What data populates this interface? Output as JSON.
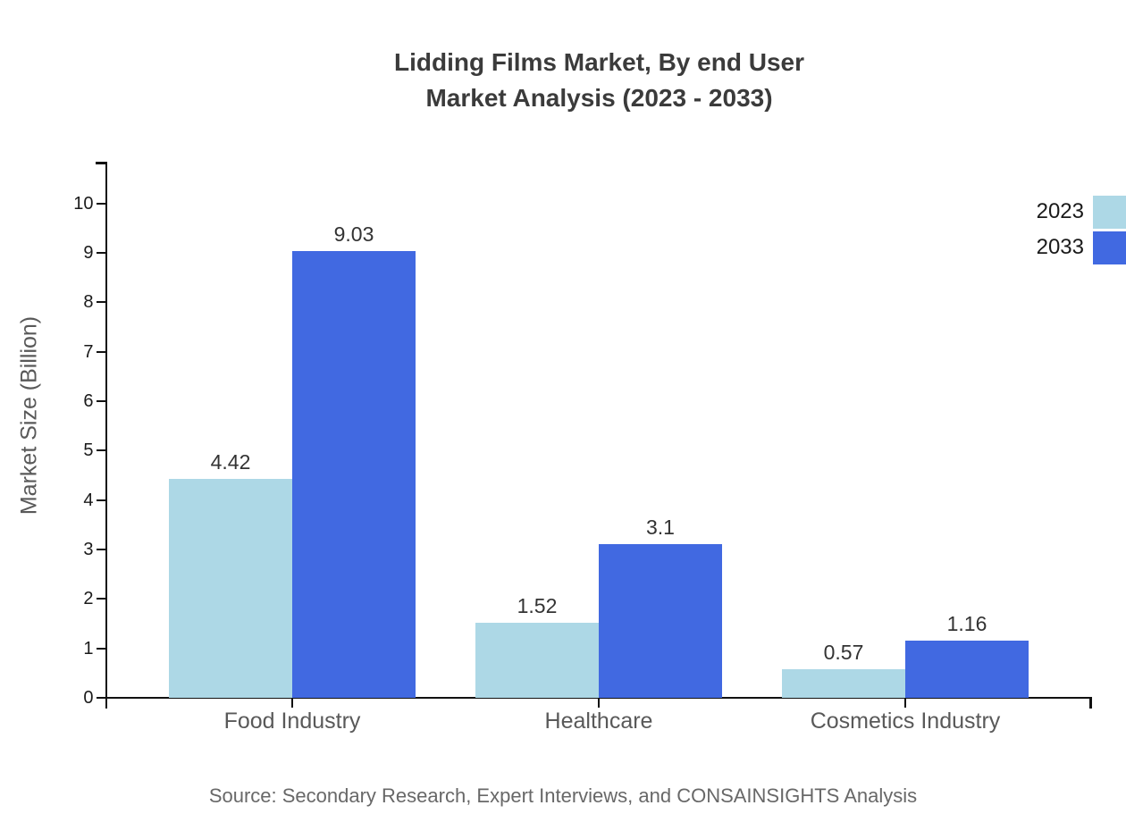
{
  "title": {
    "line1": "Lidding Films Market, By end User",
    "line2": "Market Analysis (2023 - 2033)"
  },
  "source_note": "Source: Secondary Research, Expert Interviews, and CONSAINSIGHTS Analysis",
  "colors": {
    "series_2023": "#ADD8E6",
    "series_2033": "#4169E1",
    "axis_line": "#111111",
    "title_text": "#3b3b3b",
    "category_text": "#595959",
    "value_text": "#333333",
    "source_text": "#686868"
  },
  "legend": {
    "position": "top-right",
    "items": [
      {
        "label": "2023",
        "color": "#ADD8E6"
      },
      {
        "label": "2033",
        "color": "#4169E1"
      }
    ]
  },
  "chart_data": {
    "type": "bar",
    "title": "Lidding Films Market, By end User Market Analysis (2023 - 2033)",
    "categories": [
      "Food Industry",
      "Healthcare",
      "Cosmetics Industry"
    ],
    "series": [
      {
        "name": "2023",
        "color": "#ADD8E6",
        "values": [
          4.42,
          1.52,
          0.57
        ]
      },
      {
        "name": "2033",
        "color": "#4169E1",
        "values": [
          9.03,
          3.1,
          1.16
        ]
      }
    ],
    "value_labels": [
      [
        "4.42",
        "1.52",
        "0.57"
      ],
      [
        "9.03",
        "3.1",
        "1.16"
      ]
    ],
    "xlabel": "",
    "ylabel": "Market Size (Billion)",
    "ylim": [
      0,
      10.8
    ],
    "yticks": [
      0,
      1,
      2,
      3,
      4,
      5,
      6,
      7,
      8,
      9,
      10
    ],
    "grid": false,
    "legend_position": "top-right",
    "bar_value_labels_shown": true
  }
}
